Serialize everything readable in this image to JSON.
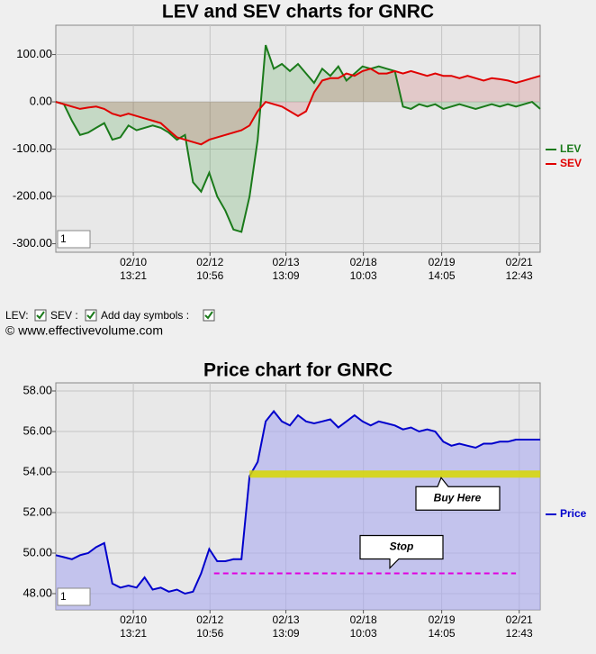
{
  "chart_data": [
    {
      "type": "line",
      "title": "LEV and SEV charts for GNRC",
      "zoom_input": "1",
      "x": [
        0,
        1,
        2,
        3,
        4,
        5,
        6,
        7,
        8,
        9,
        10,
        11,
        12,
        13,
        14,
        15,
        16,
        17,
        18,
        19,
        20,
        21,
        22,
        23,
        24,
        25,
        26,
        27,
        28,
        29,
        30,
        31,
        32,
        33,
        34,
        35,
        36,
        37,
        38,
        39,
        40,
        41,
        42,
        43,
        44,
        45,
        46,
        47,
        48,
        49,
        50,
        51,
        52,
        53,
        54,
        55,
        56,
        57,
        58,
        59,
        60
      ],
      "xlim": [
        0,
        60
      ],
      "xticks": [
        {
          "value": 9.6,
          "label": "02/10 13:21"
        },
        {
          "value": 19.1,
          "label": "02/12 10:56"
        },
        {
          "value": 28.5,
          "label": "02/13 13:09"
        },
        {
          "value": 38.1,
          "label": "02/18 10:03"
        },
        {
          "value": 47.8,
          "label": "02/19 14:05"
        },
        {
          "value": 57.4,
          "label": "02/21 12:43"
        }
      ],
      "ylim": [
        -318,
        162
      ],
      "yticks": [
        {
          "value": 100,
          "label": "100.00"
        },
        {
          "value": 0,
          "label": "0.00"
        },
        {
          "value": -100,
          "label": "-100.00"
        },
        {
          "value": -200,
          "label": "-200.00"
        },
        {
          "value": -300,
          "label": "-300.00"
        }
      ],
      "grid": true,
      "legend": "right",
      "series": [
        {
          "name": "LEV",
          "color": "#1a7a1a",
          "fill": "rgba(40,150,40,0.18)",
          "values": [
            0,
            -5,
            -40,
            -70,
            -65,
            -55,
            -45,
            -80,
            -75,
            -50,
            -60,
            -55,
            -50,
            -55,
            -65,
            -80,
            -70,
            -170,
            -190,
            -150,
            -200,
            -230,
            -270,
            -275,
            -200,
            -80,
            120,
            70,
            80,
            65,
            80,
            60,
            40,
            70,
            55,
            75,
            45,
            60,
            75,
            70,
            75,
            70,
            65,
            -10,
            -15,
            -5,
            -10,
            -5,
            -15,
            -10,
            -5,
            -10,
            -15,
            -10,
            -5,
            -10,
            -5,
            -10,
            -5,
            0,
            -15
          ]
        },
        {
          "name": "SEV",
          "color": "#e00000",
          "fill": "rgba(200,60,60,0.18)",
          "values": [
            0,
            -5,
            -10,
            -15,
            -12,
            -10,
            -15,
            -25,
            -30,
            -25,
            -30,
            -35,
            -40,
            -45,
            -60,
            -75,
            -80,
            -85,
            -90,
            -80,
            -75,
            -70,
            -65,
            -60,
            -50,
            -20,
            0,
            -5,
            -10,
            -20,
            -30,
            -20,
            20,
            45,
            50,
            50,
            60,
            55,
            65,
            70,
            60,
            60,
            65,
            60,
            65,
            60,
            55,
            60,
            55,
            55,
            50,
            55,
            50,
            45,
            50,
            48,
            45,
            40,
            45,
            50,
            55
          ]
        }
      ]
    },
    {
      "type": "area",
      "title": "Price chart for GNRC",
      "zoom_input": "1",
      "x": [
        0,
        1,
        2,
        3,
        4,
        5,
        6,
        7,
        8,
        9,
        10,
        11,
        12,
        13,
        14,
        15,
        16,
        17,
        18,
        19,
        20,
        21,
        22,
        23,
        24,
        25,
        26,
        27,
        28,
        29,
        30,
        31,
        32,
        33,
        34,
        35,
        36,
        37,
        38,
        39,
        40,
        41,
        42,
        43,
        44,
        45,
        46,
        47,
        48,
        49,
        50,
        51,
        52,
        53,
        54,
        55,
        56,
        57,
        58,
        59,
        60
      ],
      "xlim": [
        0,
        60
      ],
      "xticks": [
        {
          "value": 9.6,
          "label": "02/10 13:21"
        },
        {
          "value": 19.1,
          "label": "02/12 10:56"
        },
        {
          "value": 28.5,
          "label": "02/13 13:09"
        },
        {
          "value": 38.1,
          "label": "02/18 10:03"
        },
        {
          "value": 47.8,
          "label": "02/19 14:05"
        },
        {
          "value": 57.4,
          "label": "02/21 12:43"
        }
      ],
      "ylim": [
        47.2,
        58.4
      ],
      "yticks": [
        {
          "value": 58,
          "label": "58.00"
        },
        {
          "value": 56,
          "label": "56.00"
        },
        {
          "value": 54,
          "label": "54.00"
        },
        {
          "value": 52,
          "label": "52.00"
        },
        {
          "value": 50,
          "label": "50.00"
        },
        {
          "value": 48,
          "label": "48.00"
        }
      ],
      "grid": true,
      "legend": "right",
      "series": [
        {
          "name": "Price",
          "color": "#0000cc",
          "fill": "rgba(170,170,240,0.6)",
          "values": [
            49.9,
            49.8,
            49.7,
            49.9,
            50.0,
            50.3,
            50.5,
            48.5,
            48.3,
            48.4,
            48.3,
            48.8,
            48.2,
            48.3,
            48.1,
            48.2,
            48.0,
            48.1,
            49.0,
            50.2,
            49.6,
            49.6,
            49.7,
            49.7,
            53.8,
            54.5,
            56.5,
            57.0,
            56.5,
            56.3,
            56.8,
            56.5,
            56.4,
            56.5,
            56.6,
            56.2,
            56.5,
            56.8,
            56.5,
            56.3,
            56.5,
            56.4,
            56.3,
            56.1,
            56.2,
            56.0,
            56.1,
            56.0,
            55.5,
            55.3,
            55.4,
            55.3,
            55.2,
            55.4,
            55.4,
            55.5,
            55.5,
            55.6,
            55.6,
            55.6,
            55.6
          ]
        }
      ],
      "levels": [
        {
          "label": "Buy Here",
          "value": 53.9,
          "from": 24,
          "to": 60,
          "color": "#d8d800"
        },
        {
          "label": "Stop",
          "value": 49.0,
          "from": 19.6,
          "to": 57,
          "color": "#e000e0"
        }
      ]
    }
  ],
  "controls": {
    "lev": "LEV:",
    "sev": "SEV :",
    "symbols": "Add day symbols :",
    "copyright": "© www.effectivevolume.com"
  }
}
